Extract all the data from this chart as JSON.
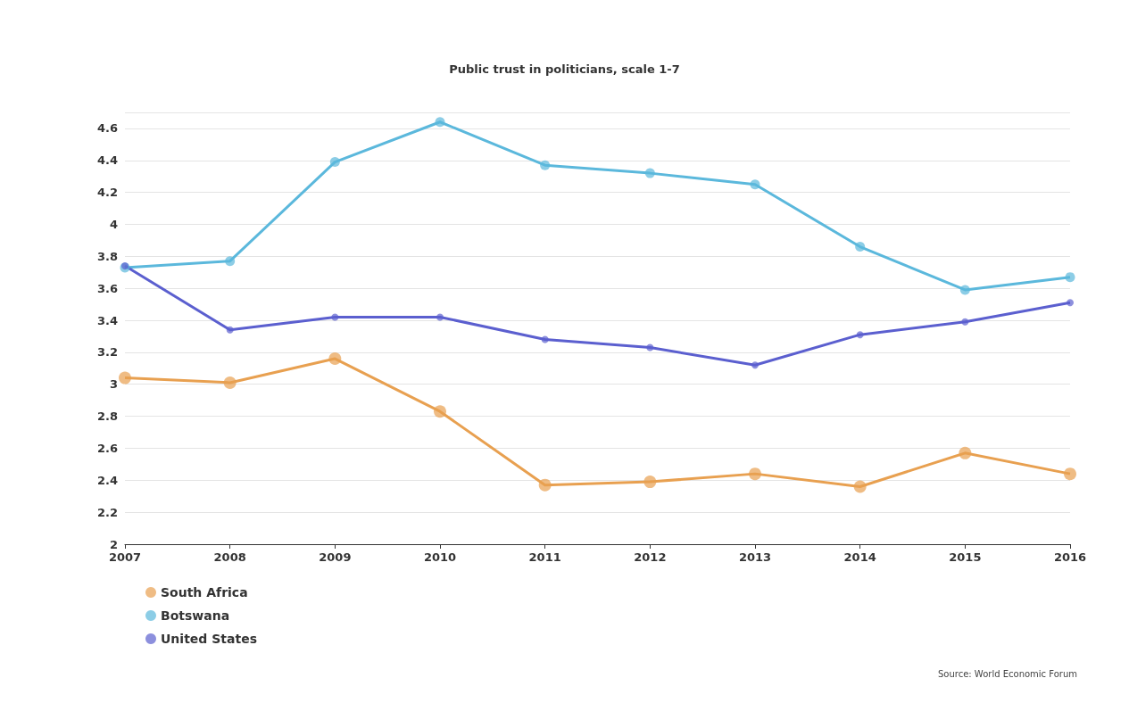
{
  "chart_data": {
    "type": "line",
    "title": "Public trust in politicians, scale 1-7",
    "categories": [
      "2007",
      "2008",
      "2009",
      "2010",
      "2011",
      "2012",
      "2013",
      "2014",
      "2015",
      "2016"
    ],
    "series": [
      {
        "name": "South Africa",
        "color": "#e8a050",
        "values": [
          3.04,
          3.01,
          3.16,
          2.83,
          2.37,
          2.39,
          2.44,
          2.36,
          2.57,
          2.44
        ]
      },
      {
        "name": "Botswana",
        "color": "#5bb8dc",
        "values": [
          3.73,
          3.77,
          4.39,
          4.64,
          4.37,
          4.32,
          4.25,
          3.86,
          3.59,
          3.67
        ]
      },
      {
        "name": "United States",
        "color": "#5b5fcf",
        "values": [
          3.74,
          3.34,
          3.42,
          3.42,
          3.28,
          3.23,
          3.12,
          3.31,
          3.39,
          3.51
        ]
      }
    ],
    "ylim": [
      2,
      4.7
    ],
    "yticks": [
      2,
      2.2,
      2.4,
      2.6,
      2.8,
      3,
      3.2,
      3.4,
      3.6,
      3.8,
      4,
      4.2,
      4.4,
      4.6,
      {
        "value": 4.7,
        "label": null
      }
    ],
    "grid": "y",
    "legend": "bottom left",
    "marker": "circle",
    "line_style": "solid",
    "annotations": [
      "Source: World Economic Forum"
    ]
  }
}
